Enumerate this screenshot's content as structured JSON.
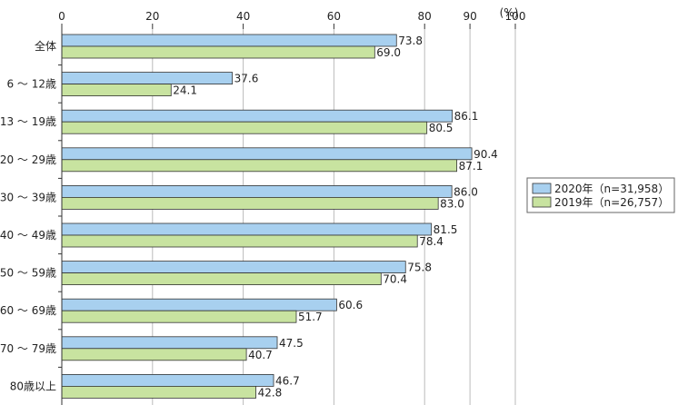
{
  "chart_data": {
    "type": "bar",
    "orientation": "horizontal",
    "title": "",
    "xlabel": "",
    "ylabel": "",
    "unit_label": "(%)",
    "xlim": [
      0,
      100
    ],
    "x_ticks": [
      0,
      20,
      40,
      60,
      80,
      90,
      100
    ],
    "categories": [
      "全体",
      "6～12歳",
      "13～19歳",
      "20～29歳",
      "30～39歳",
      "40～49歳",
      "50～59歳",
      "60～69歳",
      "70～79歳",
      "80歳以上"
    ],
    "category_labels": [
      "全体",
      "6 ～ 12歳",
      "13 ～ 19歳",
      "20 ～ 29歳",
      "30 ～ 39歳",
      "40 ～ 49歳",
      "50 ～ 59歳",
      "60 ～ 69歳",
      "70 ～ 79歳",
      "80歳以上"
    ],
    "series": [
      {
        "name": "2020年（n=31,958）",
        "color": "#a8d0ef",
        "values": [
          73.8,
          37.6,
          86.1,
          90.4,
          86.0,
          81.5,
          75.8,
          60.6,
          47.5,
          46.7
        ],
        "labels": [
          "73.8",
          "37.6",
          "86.1",
          "90.4",
          "86.0",
          "81.5",
          "75.8",
          "60.6",
          "47.5",
          "46.7"
        ]
      },
      {
        "name": "2019年（n=26,757）",
        "color": "#c8e3a0",
        "values": [
          69.0,
          24.1,
          80.5,
          87.1,
          83.0,
          78.4,
          70.4,
          51.7,
          40.7,
          42.8
        ],
        "labels": [
          "69.0",
          "24.1",
          "80.5",
          "87.1",
          "83.0",
          "78.4",
          "70.4",
          "51.7",
          "40.7",
          "42.8"
        ]
      }
    ],
    "legend": {
      "placement": "right-middle",
      "entries": [
        "2020年（n=31,958）",
        "2019年（n=26,757）"
      ]
    },
    "grid": true
  },
  "colors": {
    "bar_stroke": "#333333",
    "grid": "#bbbbbb",
    "axis": "#333333"
  }
}
